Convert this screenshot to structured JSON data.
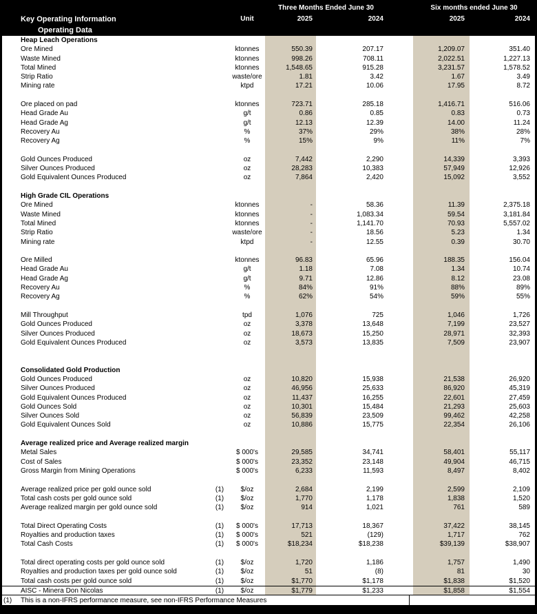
{
  "header": {
    "title": "Key Operating Information",
    "subtitle": "Operating Data",
    "unit_label": "Unit",
    "period_groups": [
      "Three Months Ended June 30",
      "Six months ended June 30"
    ],
    "year_columns": [
      "2025",
      "2024",
      "2025",
      "2024"
    ]
  },
  "colors": {
    "highlight_column": "#d5cdbc",
    "header_bg": "#000000",
    "header_text": "#ffffff"
  },
  "sections": [
    {
      "title": "Heap Leach Operations",
      "gap_before": 0,
      "rows": [
        {
          "label": "Ore Mined",
          "unit": "ktonnes",
          "values": [
            "550.39",
            "207.17",
            "1,209.07",
            "351.40"
          ]
        },
        {
          "label": "Waste Mined",
          "unit": "ktonnes",
          "values": [
            "998.26",
            "708.11",
            "2,022.51",
            "1,227.13"
          ]
        },
        {
          "label": "Total Mined",
          "unit": "ktonnes",
          "values": [
            "1,548.65",
            "915.28",
            "3,231.57",
            "1,578.52"
          ]
        },
        {
          "label": "Strip Ratio",
          "unit": "waste/ore",
          "values": [
            "1.81",
            "3.42",
            "1.67",
            "3.49"
          ]
        },
        {
          "label": "Mining rate",
          "unit": "ktpd",
          "values": [
            "17.21",
            "10.06",
            "17.95",
            "8.72"
          ]
        },
        {
          "blank": true
        },
        {
          "label": "Ore placed on pad",
          "unit": "ktonnes",
          "values": [
            "723.71",
            "285.18",
            "1,416.71",
            "516.06"
          ]
        },
        {
          "label": "Head Grade Au",
          "unit": "g/t",
          "values": [
            "0.86",
            "0.85",
            "0.83",
            "0.73"
          ]
        },
        {
          "label": "Head Grade Ag",
          "unit": "g/t",
          "values": [
            "12.13",
            "12.39",
            "14.00",
            "11.24"
          ]
        },
        {
          "label": "Recovery Au",
          "unit": "%",
          "values": [
            "37%",
            "29%",
            "38%",
            "28%"
          ]
        },
        {
          "label": "Recovery Ag",
          "unit": "%",
          "values": [
            "15%",
            "9%",
            "11%",
            "7%"
          ]
        },
        {
          "blank": true
        },
        {
          "label": "Gold Ounces Produced",
          "unit": "oz",
          "values": [
            "7,442",
            "2,290",
            "14,339",
            "3,393"
          ]
        },
        {
          "label": "Silver Ounces Produced",
          "unit": "oz",
          "values": [
            "28,283",
            "10,383",
            "57,949",
            "12,926"
          ]
        },
        {
          "label": "Gold Equivalent Ounces Produced",
          "unit": "oz",
          "values": [
            "7,864",
            "2,420",
            "15,092",
            "3,552"
          ]
        }
      ]
    },
    {
      "title": "High Grade CIL Operations",
      "gap_before": 1,
      "rows": [
        {
          "label": "Ore Mined",
          "unit": "ktonnes",
          "values": [
            "-",
            "58.36",
            "11.39",
            "2,375.18"
          ]
        },
        {
          "label": "Waste Mined",
          "unit": "ktonnes",
          "values": [
            "-",
            "1,083.34",
            "59.54",
            "3,181.84"
          ]
        },
        {
          "label": "Total Mined",
          "unit": "ktonnes",
          "values": [
            "-",
            "1,141.70",
            "70.93",
            "5,557.02"
          ]
        },
        {
          "label": "Strip Ratio",
          "unit": "waste/ore",
          "values": [
            "-",
            "18.56",
            "5.23",
            "1.34"
          ]
        },
        {
          "label": "Mining rate",
          "unit": "ktpd",
          "values": [
            "-",
            "12.55",
            "0.39",
            "30.70"
          ]
        },
        {
          "blank": true
        },
        {
          "label": "Ore Milled",
          "unit": "ktonnes",
          "values": [
            "96.83",
            "65.96",
            "188.35",
            "156.04"
          ]
        },
        {
          "label": "Head Grade Au",
          "unit": "g/t",
          "values": [
            "1.18",
            "7.08",
            "1.34",
            "10.74"
          ]
        },
        {
          "label": "Head Grade Ag",
          "unit": "g/t",
          "values": [
            "9.71",
            "12.86",
            "8.12",
            "23.08"
          ]
        },
        {
          "label": "Recovery Au",
          "unit": "%",
          "values": [
            "84%",
            "91%",
            "88%",
            "89%"
          ]
        },
        {
          "label": "Recovery Ag",
          "unit": "%",
          "values": [
            "62%",
            "54%",
            "59%",
            "55%"
          ]
        },
        {
          "blank": true
        },
        {
          "label": "Mill Throughput",
          "unit": "tpd",
          "values": [
            "1,076",
            "725",
            "1,046",
            "1,726"
          ]
        },
        {
          "label": "Gold Ounces Produced",
          "unit": "oz",
          "values": [
            "3,378",
            "13,648",
            "7,199",
            "23,527"
          ]
        },
        {
          "label": "Silver Ounces Produced",
          "unit": "oz",
          "values": [
            "18,673",
            "15,250",
            "28,971",
            "32,393"
          ]
        },
        {
          "label": "Gold Equivalent Ounces Produced",
          "unit": "oz",
          "values": [
            "3,573",
            "13,835",
            "7,509",
            "23,907"
          ]
        }
      ]
    },
    {
      "title": "Consolidated Gold Production",
      "gap_before": 2,
      "rows": [
        {
          "label": "Gold Ounces Produced",
          "unit": "oz",
          "values": [
            "10,820",
            "15,938",
            "21,538",
            "26,920"
          ]
        },
        {
          "label": "Silver Ounces Produced",
          "unit": "oz",
          "values": [
            "46,956",
            "25,633",
            "86,920",
            "45,319"
          ]
        },
        {
          "label": "Gold Equivalent Ounces Produced",
          "unit": "oz",
          "values": [
            "11,437",
            "16,255",
            "22,601",
            "27,459"
          ]
        },
        {
          "label": "Gold Ounces Sold",
          "unit": "oz",
          "values": [
            "10,301",
            "15,484",
            "21,293",
            "25,603"
          ]
        },
        {
          "label": "Silver Ounces Sold",
          "unit": "oz",
          "values": [
            "56,839",
            "23,509",
            "99,462",
            "42,258"
          ]
        },
        {
          "label": "Gold Equivalent Ounces Sold",
          "unit": "oz",
          "values": [
            "10,886",
            "15,775",
            "22,354",
            "26,106"
          ]
        }
      ]
    },
    {
      "title": "Average realized price and Average realized margin",
      "gap_before": 1,
      "rows": [
        {
          "label": "Metal Sales",
          "unit": "$ 000's",
          "values": [
            "29,585",
            "34,741",
            "58,401",
            "55,117"
          ]
        },
        {
          "label": "Cost of Sales",
          "unit": "$ 000's",
          "values": [
            "23,352",
            "23,148",
            "49,904",
            "46,715"
          ]
        },
        {
          "label": "Gross Margin from Mining Operations",
          "unit": "$ 000's",
          "values": [
            "6,233",
            "11,593",
            "8,497",
            "8,402"
          ]
        },
        {
          "blank": true
        },
        {
          "label": "Average realized price per gold ounce sold",
          "note": "(1)",
          "unit": "$/oz",
          "values": [
            "2,684",
            "2,199",
            "2,599",
            "2,109"
          ]
        },
        {
          "label": "Total cash costs per gold ounce sold",
          "note": "(1)",
          "unit": "$/oz",
          "values": [
            "1,770",
            "1,178",
            "1,838",
            "1,520"
          ]
        },
        {
          "label": "Average realized margin per gold ounce sold",
          "note": "(1)",
          "unit": "$/oz",
          "values": [
            "914",
            "1,021",
            "761",
            "589"
          ]
        },
        {
          "blank": true
        },
        {
          "label": "Total Direct Operating Costs",
          "note": "(1)",
          "unit": "$ 000's",
          "values": [
            "17,713",
            "18,367",
            "37,422",
            "38,145"
          ]
        },
        {
          "label": "Royalties and production taxes",
          "note": "(1)",
          "unit": "$ 000's",
          "values": [
            "521",
            "(129)",
            "1,717",
            "762"
          ]
        },
        {
          "label": "Total Cash Costs",
          "note": "(1)",
          "unit": "$ 000's",
          "values": [
            "$18,234",
            "$18,238",
            "$39,139",
            "$38,907"
          ]
        },
        {
          "blank": true
        },
        {
          "label": "Total direct operating costs per gold ounce sold",
          "note": "(1)",
          "unit": "$/oz",
          "values": [
            "1,720",
            "1,186",
            "1,757",
            "1,490"
          ]
        },
        {
          "label": "Royalties and production taxes per gold ounce sold",
          "note": "(1)",
          "unit": "$/oz",
          "values": [
            "51",
            "(8)",
            "81",
            "30"
          ]
        },
        {
          "label": "Total cash costs per gold ounce sold",
          "note": "(1)",
          "unit": "$/oz",
          "values": [
            "$1,770",
            "$1,178",
            "$1,838",
            "$1,520"
          ]
        },
        {
          "label": "AISC - Minera Don Nicolas",
          "note": "(1)",
          "unit": "$/oz",
          "values": [
            "$1,779",
            "$1,233",
            "$1,858",
            "$1,554"
          ],
          "border_top": true
        }
      ]
    }
  ],
  "footnote": {
    "marker": "(1)",
    "text": "This is a non-IFRS performance measure, see non-IFRS Performance Measures"
  }
}
